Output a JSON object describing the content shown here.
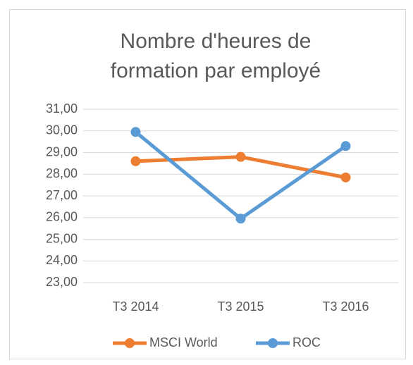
{
  "chart_data": {
    "type": "line",
    "title": [
      "Nombre d'heures de",
      "formation par employé"
    ],
    "categories": [
      "T3 2014",
      "T3 2015",
      "T3 2016"
    ],
    "series": [
      {
        "name": "MSCI World",
        "color": "#ed7d31",
        "values": [
          28.6,
          28.8,
          27.85
        ]
      },
      {
        "name": "ROC",
        "color": "#5b9bd5",
        "values": [
          29.95,
          25.95,
          29.3
        ]
      }
    ],
    "ylim": [
      23,
      31
    ],
    "yticks": [
      {
        "value": 23,
        "label": "23,00"
      },
      {
        "value": 24,
        "label": "24,00"
      },
      {
        "value": 25,
        "label": "25,00"
      },
      {
        "value": 26,
        "label": "26,00"
      },
      {
        "value": 27,
        "label": "27,00"
      },
      {
        "value": 28,
        "label": "28,00"
      },
      {
        "value": 29,
        "label": "29,00"
      },
      {
        "value": 30,
        "label": "30,00"
      },
      {
        "value": 31,
        "label": "31,00"
      }
    ],
    "grid": true,
    "legend": "bottom"
  }
}
